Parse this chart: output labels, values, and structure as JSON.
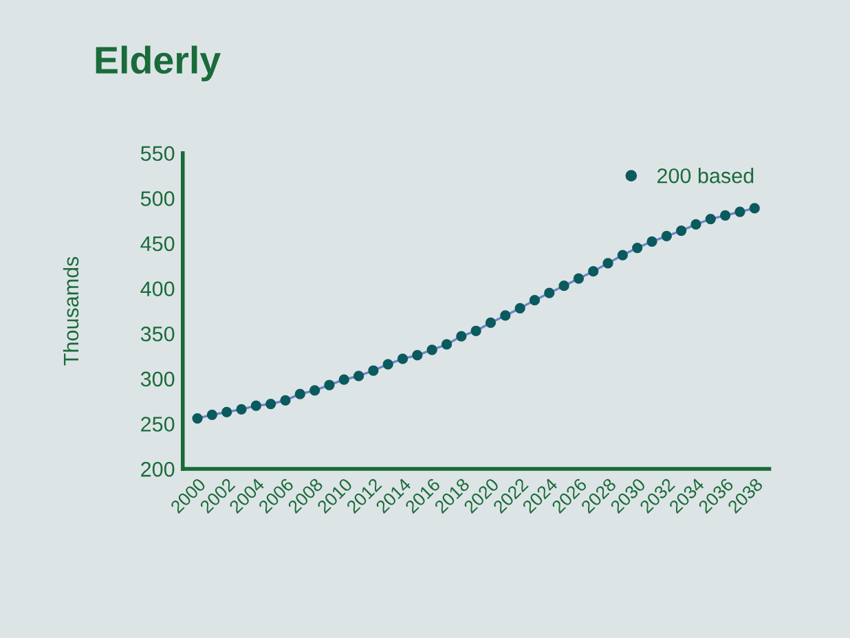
{
  "chart_data": {
    "type": "line",
    "title": "Elderly",
    "ylabel": "Thousamds",
    "x": [
      2000,
      2001,
      2002,
      2003,
      2004,
      2005,
      2006,
      2007,
      2008,
      2009,
      2010,
      2011,
      2012,
      2013,
      2014,
      2015,
      2016,
      2017,
      2018,
      2019,
      2020,
      2021,
      2022,
      2023,
      2024,
      2025,
      2026,
      2027,
      2028,
      2029,
      2030,
      2031,
      2032,
      2033,
      2034,
      2035,
      2036,
      2037,
      2038
    ],
    "series": [
      {
        "name": "200 based",
        "color": "#0b5a5e",
        "values": [
          256,
          260,
          263,
          266,
          270,
          272,
          276,
          283,
          287,
          293,
          299,
          303,
          309,
          316,
          322,
          326,
          332,
          338,
          347,
          353,
          362,
          370,
          378,
          387,
          395,
          403,
          411,
          419,
          428,
          437,
          445,
          452,
          458,
          464,
          471,
          477,
          481,
          485,
          489
        ]
      }
    ],
    "xlim": [
      1999,
      2039
    ],
    "xticks": [
      2000,
      2002,
      2004,
      2006,
      2008,
      2010,
      2012,
      2014,
      2016,
      2018,
      2020,
      2022,
      2024,
      2026,
      2028,
      2030,
      2032,
      2034,
      2036,
      2038
    ],
    "ylim": [
      200,
      550
    ],
    "yticks": [
      200,
      250,
      300,
      350,
      400,
      450,
      500,
      550
    ],
    "marker": "circle",
    "line_style": "solid",
    "grid": false,
    "legend": "top right"
  }
}
